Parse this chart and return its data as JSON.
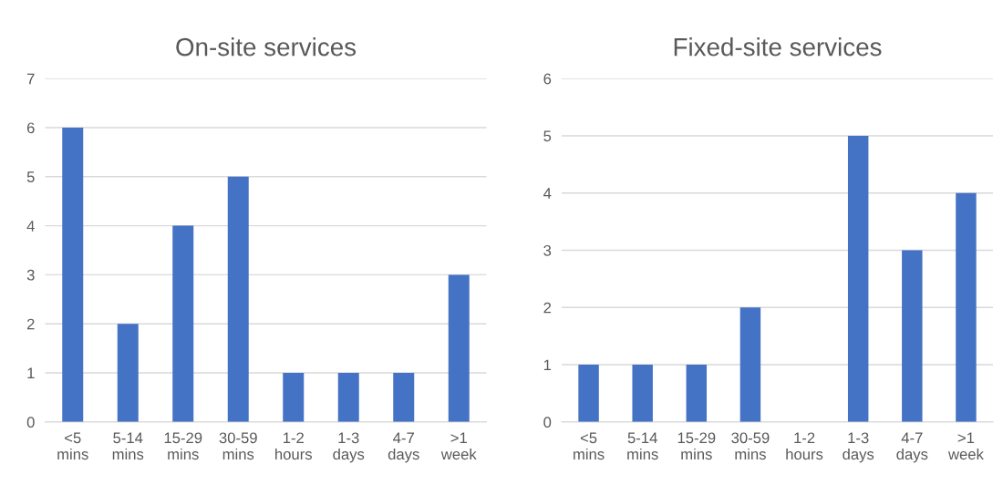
{
  "chart_data": [
    {
      "type": "bar",
      "title": "On-site services",
      "categories": [
        "<5\nmins",
        "5-14\nmins",
        "15-29\nmins",
        "30-59\nmins",
        "1-2\nhours",
        "1-3\ndays",
        "4-7\ndays",
        ">1\nweek"
      ],
      "values": [
        6,
        2,
        4,
        5,
        1,
        1,
        1,
        3
      ],
      "color": "#4472c4",
      "ylim": [
        0,
        7
      ],
      "yticks": [
        0,
        1,
        2,
        3,
        4,
        5,
        6,
        7
      ],
      "grid": "y"
    },
    {
      "type": "bar",
      "title": "Fixed-site services",
      "categories": [
        "<5\nmins",
        "5-14\nmins",
        "15-29\nmins",
        "30-59\nmins",
        "1-2\nhours",
        "1-3\ndays",
        "4-7\ndays",
        ">1\nweek"
      ],
      "values": [
        1,
        1,
        1,
        2,
        0,
        5,
        3,
        4
      ],
      "color": "#4472c4",
      "ylim": [
        0,
        6
      ],
      "yticks": [
        0,
        1,
        2,
        3,
        4,
        5,
        6
      ],
      "grid": "y"
    }
  ]
}
